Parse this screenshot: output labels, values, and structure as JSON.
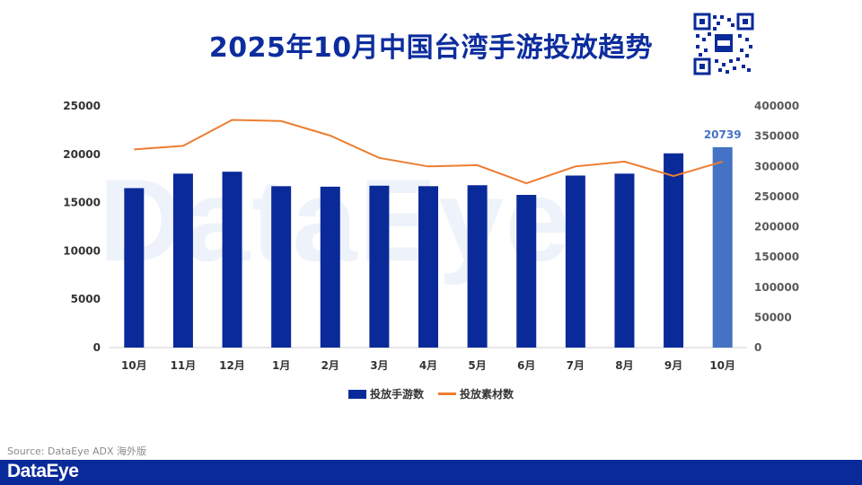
{
  "header": {
    "title": "2025年10月中国台湾手游投放趋势"
  },
  "watermark": "DataEye",
  "legend": {
    "bar_label": "投放手游数",
    "line_label": "投放素材数"
  },
  "source": "Source: DataEye ADX 海外版",
  "footer": {
    "brand": "DataEye"
  },
  "colors": {
    "bar": "#0a2a99",
    "bar_highlight": "#4472c4",
    "line": "#ed7d31",
    "title": "#0d2d9e"
  },
  "chart_data": {
    "type": "bar",
    "categories": [
      "10月",
      "11月",
      "12月",
      "1月",
      "2月",
      "3月",
      "4月",
      "5月",
      "6月",
      "7月",
      "8月",
      "9月",
      "10月"
    ],
    "series": [
      {
        "name": "投放手游数",
        "type": "bar",
        "axis": "left",
        "values": [
          16500,
          18000,
          18200,
          16700,
          16650,
          16750,
          16700,
          16800,
          15800,
          17800,
          18000,
          20100,
          20739
        ]
      },
      {
        "name": "投放素材数",
        "type": "line",
        "axis": "right",
        "values": [
          328000,
          334000,
          377000,
          375000,
          351000,
          314000,
          300000,
          302000,
          272000,
          300000,
          308000,
          284000,
          308000
        ]
      }
    ],
    "highlight_index": 12,
    "data_label": "20739",
    "left_axis": {
      "ylim": [
        0,
        25000
      ],
      "ticks": [
        "0",
        "5000",
        "10000",
        "15000",
        "20000",
        "25000"
      ]
    },
    "right_axis": {
      "ylim": [
        0,
        400000
      ],
      "ticks": [
        "0",
        "50000",
        "100000",
        "150000",
        "200000",
        "250000",
        "300000",
        "350000",
        "400000"
      ]
    },
    "xlabel": "",
    "ylabel": ""
  }
}
